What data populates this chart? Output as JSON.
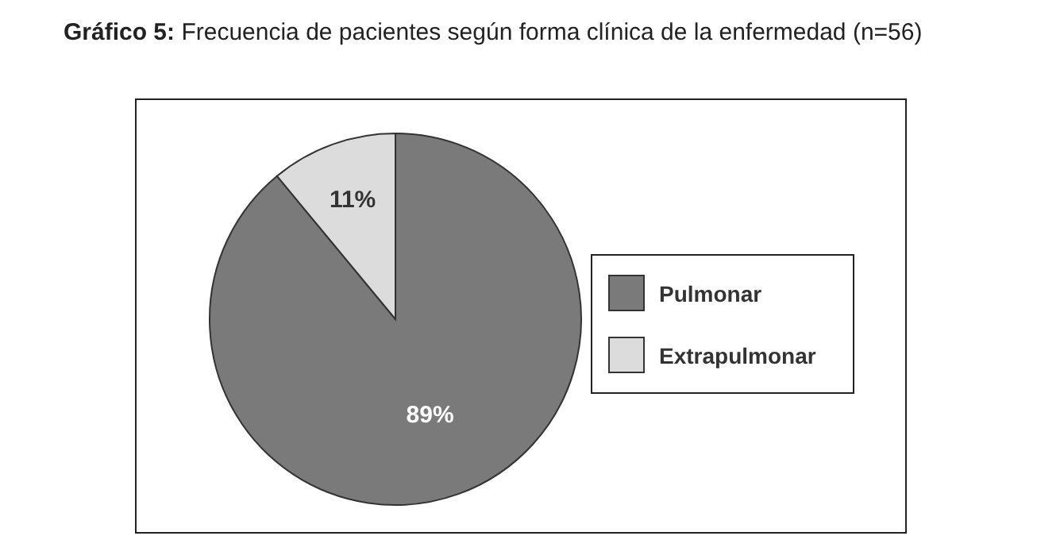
{
  "chart_data": {
    "type": "pie",
    "title": "Gráfico 5: Frecuencia de pacientes según forma clínica de la enfermedad (n=56)",
    "categories": [
      "Pulmonar",
      "Extrapulmonar"
    ],
    "values": [
      89,
      11
    ],
    "colors": [
      "#7a7a7a",
      "#dcdcdc"
    ],
    "value_labels": [
      "89%",
      "11%"
    ],
    "legend": "right"
  }
}
